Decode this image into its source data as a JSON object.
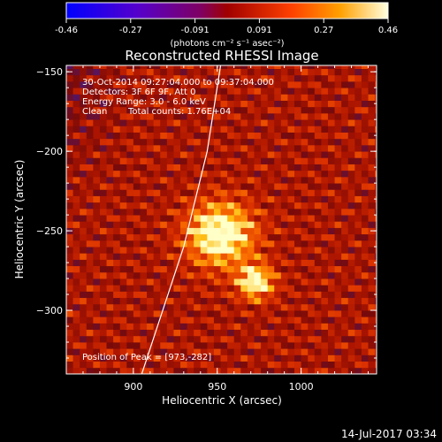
{
  "colorbar": {
    "ticks": [
      "-0.46",
      "-0.27",
      "-0.091",
      "0.091",
      "0.27",
      "0.46"
    ],
    "min": -0.46,
    "max": 0.46,
    "units_label": "(photons cm⁻² s⁻¹ asec⁻²)"
  },
  "chart_data": {
    "type": "heatmap",
    "title": "Reconstructed RHESSI Image",
    "xlabel": "Heliocentric X (arcsec)",
    "ylabel": "Heliocentric Y (arcsec)",
    "xlim": [
      860,
      1045
    ],
    "ylim": [
      -340,
      -146
    ],
    "xticks": [
      900,
      950,
      1000
    ],
    "yticks": [
      -150,
      -200,
      -250,
      -300
    ],
    "xtick_labels": [
      "900",
      "950",
      "1000"
    ],
    "ytick_labels": [
      "-150",
      "-200",
      "-250",
      "-300"
    ],
    "annotations": {
      "time_range": "30-Oct-2014 09:27:04.000 to 09:37:04.000",
      "detectors": "Detectors: 3F 6F 9F, Att 0",
      "energy": "Energy Range: 3.0 - 6.0 keV",
      "method": "Clean",
      "total_counts": "Total counts: 1.76E+04",
      "peak": "Position of Peak = [973,-282]"
    },
    "peak_position": [
      973,
      -282
    ],
    "colormap": "red-temperature",
    "limb_curve": [
      [
        905,
        -340
      ],
      [
        930,
        -260
      ],
      [
        944,
        -200
      ],
      [
        952,
        -146
      ]
    ]
  },
  "footer": {
    "timestamp": "14-Jul-2017 03:34"
  }
}
